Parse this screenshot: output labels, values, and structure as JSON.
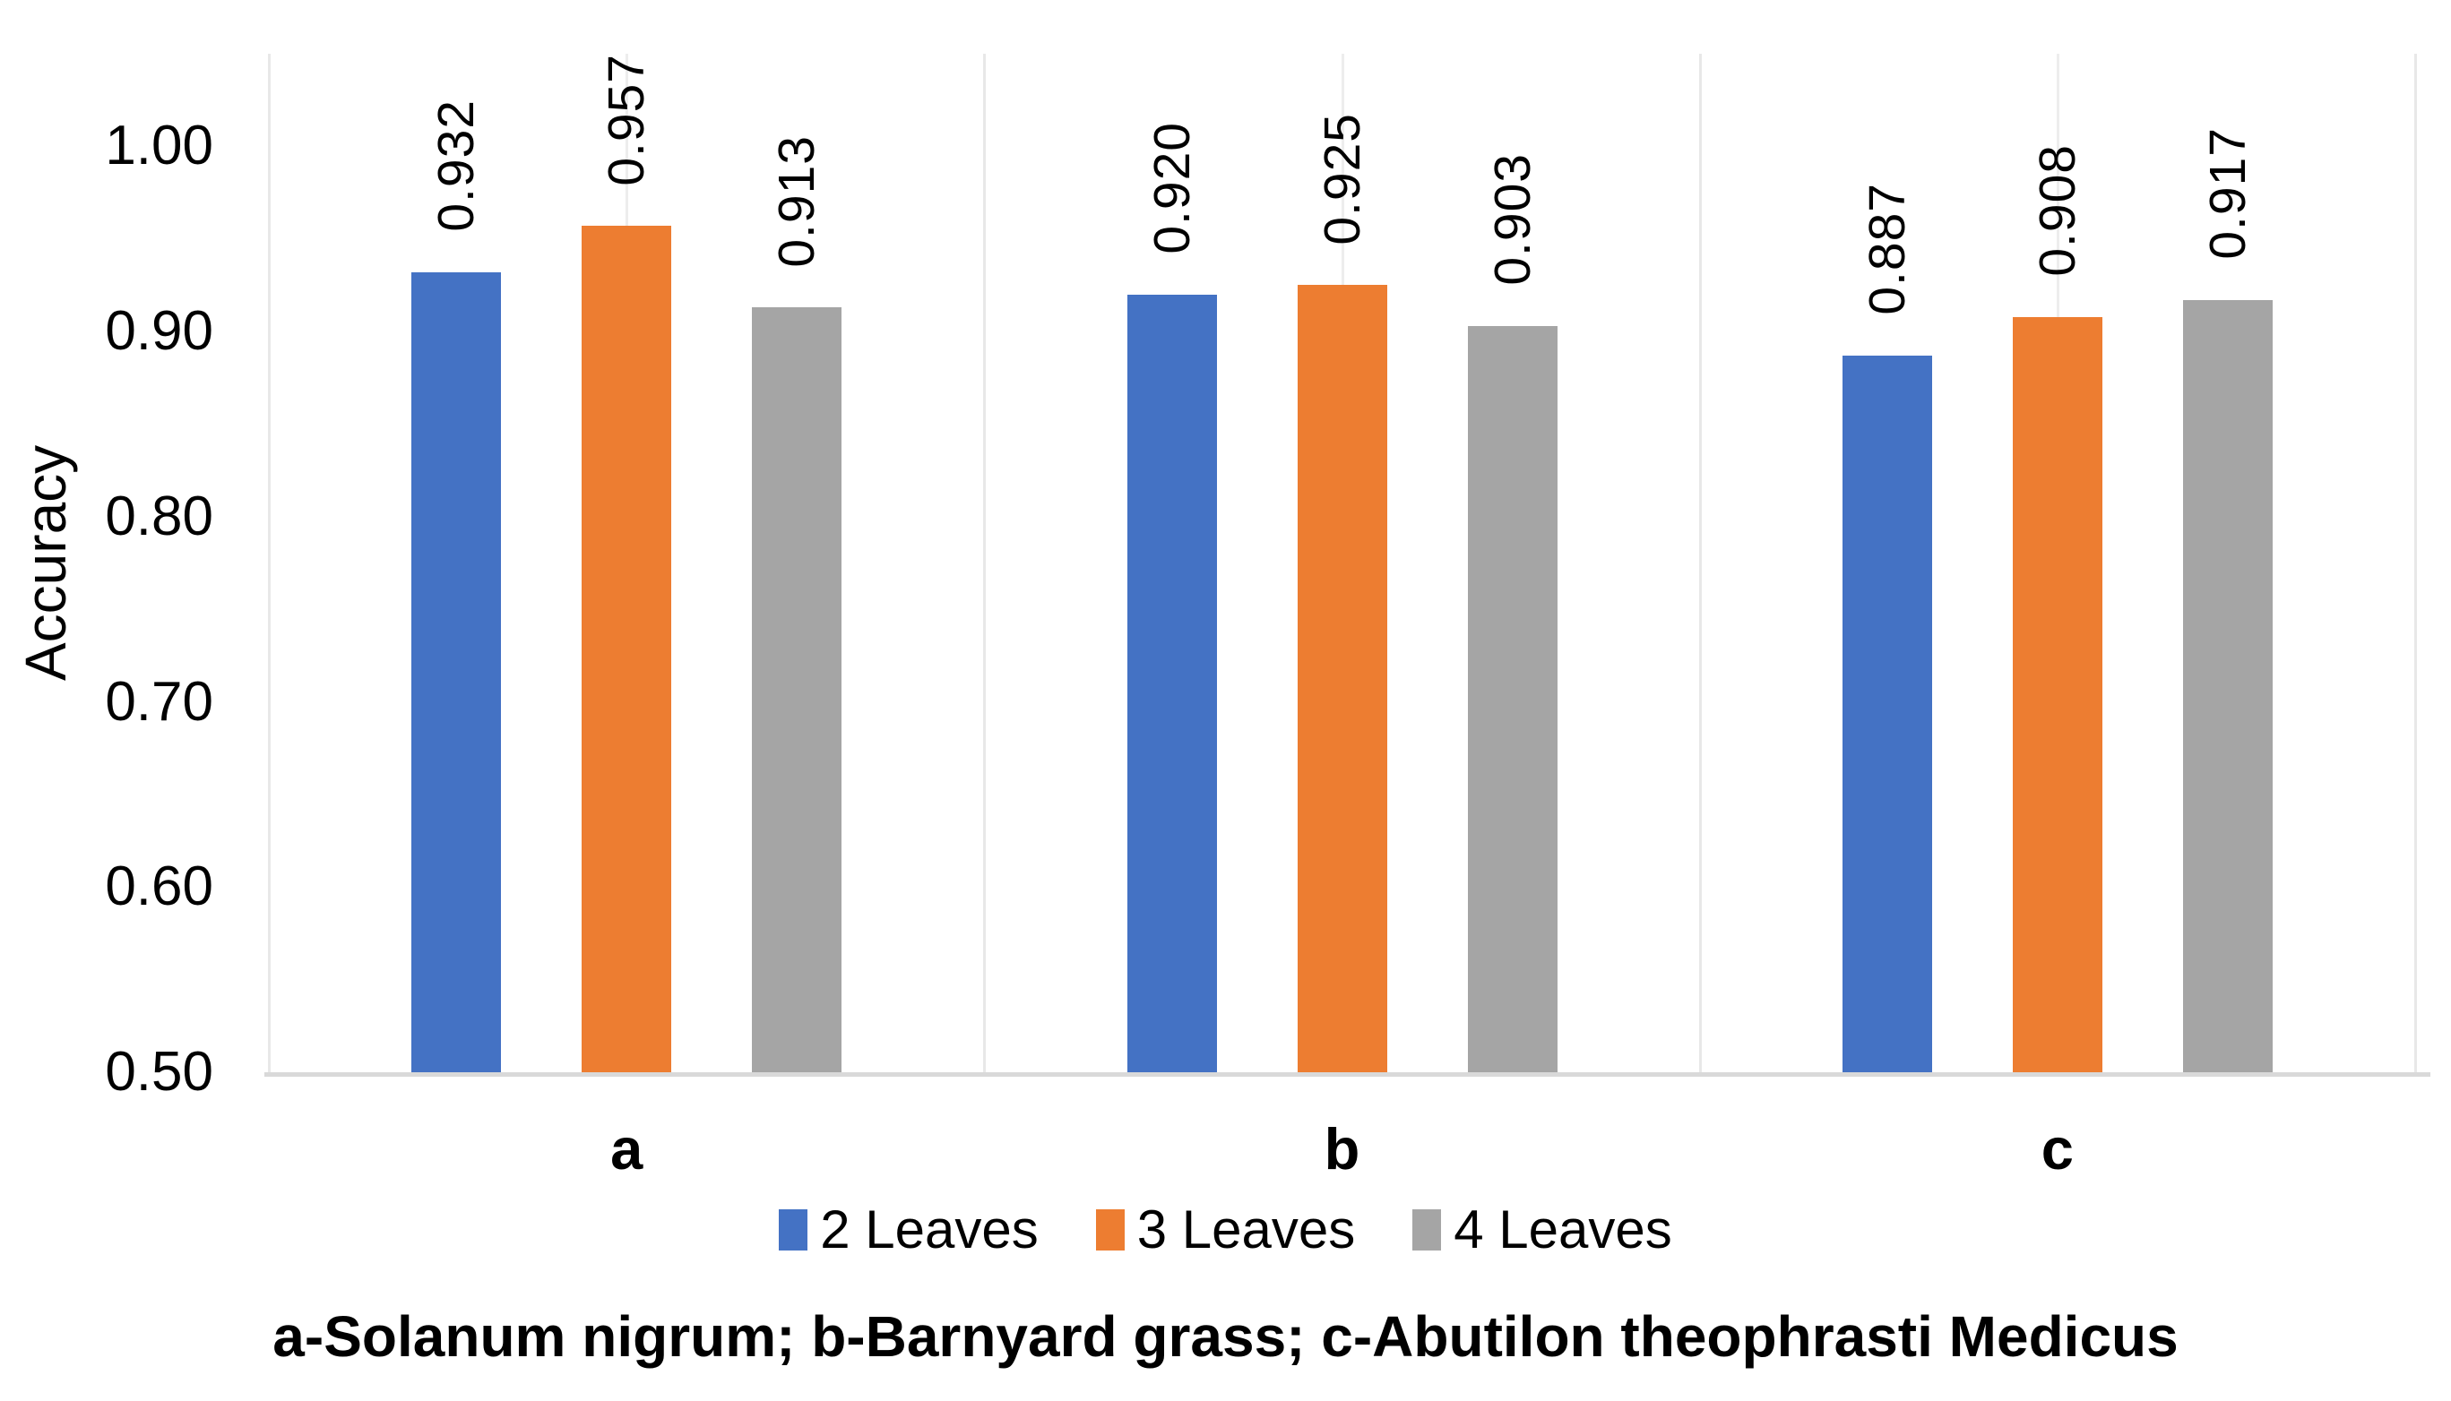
{
  "chart_data": {
    "type": "bar",
    "title": "",
    "xlabel": "",
    "ylabel": "Accuracy",
    "categories": [
      "a",
      "b",
      "c"
    ],
    "series": [
      {
        "name": "2 Leaves",
        "color": "#4472C4",
        "values": [
          0.932,
          0.92,
          0.887
        ],
        "labels": [
          "0.932",
          "0.920",
          "0.887"
        ]
      },
      {
        "name": "3 Leaves",
        "color": "#ED7D31",
        "values": [
          0.957,
          0.925,
          0.908
        ],
        "labels": [
          "0.957",
          "0.925",
          "0.908"
        ]
      },
      {
        "name": "4 Leaves",
        "color": "#A5A5A5",
        "values": [
          0.913,
          0.903,
          0.917
        ],
        "labels": [
          "0.913",
          "0.903",
          "0.917"
        ]
      }
    ],
    "y_ticks": [
      "0.50",
      "0.60",
      "0.70",
      "0.80",
      "0.90",
      "1.00"
    ],
    "ylim": [
      0.5,
      1.05
    ],
    "grid": "vertical-only",
    "legend_position": "bottom",
    "caption": "a-Solanum nigrum; b-Barnyard grass; c-Abutilon theophrasti Medicus"
  },
  "colors": {
    "axis_line": "#D9D9D9",
    "boundary_gridline": "#E8E8E8",
    "center_gridline": "#EDEDED",
    "text": "#000000"
  }
}
